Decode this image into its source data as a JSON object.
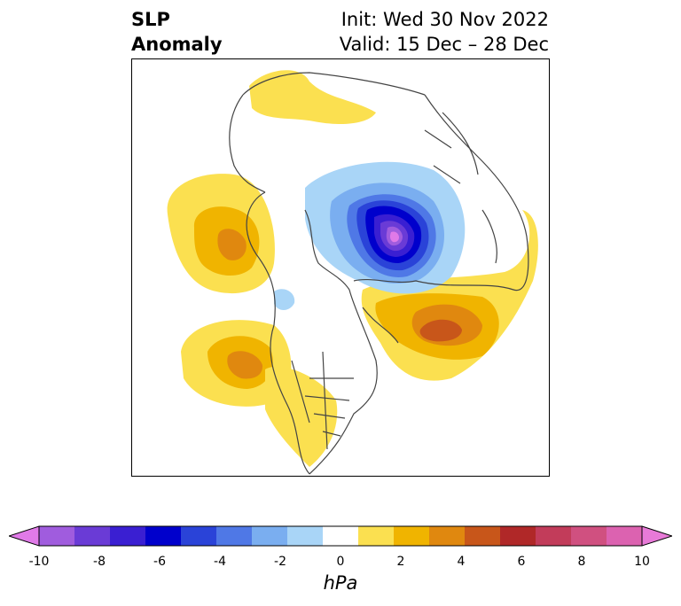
{
  "title": {
    "left_line1": "SLP",
    "left_line2": "Anomaly",
    "right_line1": "Init: Wed 30 Nov 2022",
    "right_line2": "Valid: 15 Dec – 28 Dec"
  },
  "colorbar": {
    "unit_label": "hPa",
    "ticks": [
      "-10",
      "-8",
      "-6",
      "-4",
      "-2",
      "0",
      "2",
      "4",
      "6",
      "8",
      "10"
    ],
    "colors": [
      "#e07ae8",
      "#a05cde",
      "#6a3bd6",
      "#3a1fd2",
      "#0000cc",
      "#2a43d8",
      "#4f78e6",
      "#7aaef0",
      "#a9d5f7",
      "#ffffff",
      "#fbe050",
      "#f0b400",
      "#e0880f",
      "#c8561a",
      "#b02828",
      "#c23c5a",
      "#d05080",
      "#dc62b0",
      "#e87ad8"
    ]
  }
}
